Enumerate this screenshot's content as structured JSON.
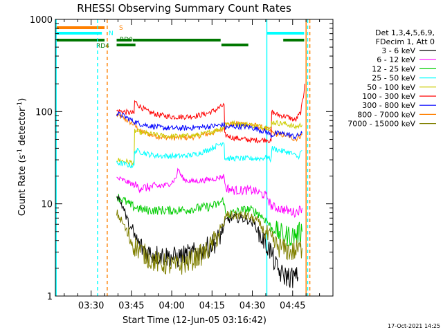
{
  "chart_data": {
    "type": "line",
    "title": "RHESSI Observing Summary Count Rates",
    "xlabel": "Start Time (12-Jun-05 03:16:42)",
    "ylabel_prefix": "Count Rate (s",
    "ylabel_sup": "-1",
    "ylabel_suffix": " detector",
    "ylabel_end": ")",
    "yscale": "log",
    "xlim_minutes": [
      196.7,
      300.0
    ],
    "ylim": [
      1,
      1000
    ],
    "x_ticks": [
      {
        "m": 210,
        "label": "03:30"
      },
      {
        "m": 225,
        "label": "03:45"
      },
      {
        "m": 240,
        "label": "04:00"
      },
      {
        "m": 255,
        "label": "04:15"
      },
      {
        "m": 270,
        "label": "04:30"
      },
      {
        "m": 285,
        "label": "04:45"
      }
    ],
    "y_ticks": [
      {
        "v": 1,
        "label": "1"
      },
      {
        "v": 10,
        "label": "10"
      },
      {
        "v": 100,
        "label": "100"
      },
      {
        "v": 1000,
        "label": "1000"
      }
    ],
    "legend_header": [
      "Det 1,3,4,5,6,9,",
      "FDecim 1, Att 0"
    ],
    "legend_position": "right",
    "timestamp": "17-Oct-2021 14:25",
    "series": [
      {
        "name": "3 - 6 keV",
        "color": "#000000",
        "points": [
          [
            219.5,
            13
          ],
          [
            222,
            9
          ],
          [
            224,
            6
          ],
          [
            226,
            4.5
          ],
          [
            228,
            3.5
          ],
          [
            231,
            3
          ],
          [
            234,
            2.8
          ],
          [
            238,
            2.7
          ],
          [
            242,
            2.6
          ],
          [
            246,
            2.8
          ],
          [
            250,
            3
          ],
          [
            253,
            3.3
          ],
          [
            257,
            4
          ],
          [
            259.5,
            5.5
          ],
          [
            260,
            6.5
          ],
          [
            262,
            7
          ],
          [
            265,
            7
          ],
          [
            268,
            6.8
          ],
          [
            271,
            6
          ],
          [
            273,
            4.5
          ],
          [
            275.5,
            3.5
          ],
          [
            277,
            3
          ],
          [
            279,
            2
          ],
          [
            281,
            1.7
          ],
          [
            284,
            1.6
          ],
          [
            287,
            1.6
          ]
        ]
      },
      {
        "name": "6 - 12 keV",
        "color": "#ff00ff",
        "points": [
          [
            219.5,
            19
          ],
          [
            222,
            18
          ],
          [
            225,
            16.5
          ],
          [
            228,
            15
          ],
          [
            231,
            15
          ],
          [
            235,
            15.5
          ],
          [
            238,
            16
          ],
          [
            240,
            17
          ],
          [
            241.5,
            19
          ],
          [
            242.5,
            24
          ],
          [
            243.5,
            20
          ],
          [
            245,
            18
          ],
          [
            248,
            17.5
          ],
          [
            252,
            18
          ],
          [
            255,
            18.5
          ],
          [
            257,
            19
          ],
          [
            259.5,
            20
          ],
          [
            260,
            15
          ],
          [
            263,
            14
          ],
          [
            267,
            14
          ],
          [
            270,
            14
          ],
          [
            273,
            13
          ],
          [
            275.5,
            12
          ],
          [
            277,
            9.5
          ],
          [
            279,
            9
          ],
          [
            283,
            8.5
          ],
          [
            286,
            8
          ],
          [
            288.5,
            9
          ]
        ]
      },
      {
        "name": "12 - 25 keV",
        "color": "#00cc00",
        "points": [
          [
            219.5,
            12
          ],
          [
            222,
            11
          ],
          [
            225,
            9.5
          ],
          [
            228,
            8.8
          ],
          [
            231,
            8.5
          ],
          [
            235,
            8.5
          ],
          [
            240,
            8.5
          ],
          [
            245,
            8.6
          ],
          [
            250,
            9
          ],
          [
            254,
            9.3
          ],
          [
            257,
            9.8
          ],
          [
            259.5,
            11
          ],
          [
            260,
            7.5
          ],
          [
            263,
            8
          ],
          [
            266,
            8.5
          ],
          [
            269,
            8.7
          ],
          [
            272,
            8
          ],
          [
            275.5,
            6.5
          ],
          [
            277,
            5.5
          ],
          [
            279,
            5
          ],
          [
            282,
            4.5
          ],
          [
            285,
            4.5
          ],
          [
            288.5,
            5
          ]
        ]
      },
      {
        "name": "25 - 50 keV",
        "color": "#00ffff",
        "points": [
          [
            219.5,
            28
          ],
          [
            222,
            27
          ],
          [
            225,
            26
          ],
          [
            226,
            26
          ],
          [
            226.2,
            38
          ],
          [
            228,
            37
          ],
          [
            232,
            34
          ],
          [
            236,
            33
          ],
          [
            240,
            33
          ],
          [
            244,
            33
          ],
          [
            248,
            34
          ],
          [
            251,
            36
          ],
          [
            254,
            39
          ],
          [
            257,
            43
          ],
          [
            259.5,
            47
          ],
          [
            259.7,
            31
          ],
          [
            263,
            31
          ],
          [
            266,
            31
          ],
          [
            270,
            31
          ],
          [
            273,
            31
          ],
          [
            275.5,
            32
          ],
          [
            277,
            30
          ],
          [
            277.2,
            40
          ],
          [
            280,
            38
          ],
          [
            284,
            36
          ],
          [
            287,
            32
          ],
          [
            288.5,
            38
          ]
        ]
      },
      {
        "name": "50 - 100 keV",
        "color": "#cccc00",
        "points": [
          [
            219.5,
            30
          ],
          [
            222,
            29
          ],
          [
            226,
            28
          ],
          [
            226.2,
            62
          ],
          [
            228,
            60
          ],
          [
            232,
            57
          ],
          [
            236,
            55
          ],
          [
            240,
            54
          ],
          [
            244,
            54
          ],
          [
            248,
            55
          ],
          [
            252,
            57
          ],
          [
            256,
            62
          ],
          [
            259.5,
            68
          ],
          [
            260,
            75
          ],
          [
            263,
            74
          ],
          [
            267,
            73
          ],
          [
            270,
            71
          ],
          [
            273,
            69
          ],
          [
            275.5,
            68
          ],
          [
            277,
            65
          ],
          [
            277.2,
            77
          ],
          [
            280,
            75
          ],
          [
            283,
            73
          ],
          [
            286,
            68
          ],
          [
            288.5,
            72
          ]
        ]
      },
      {
        "name": "100 - 300 keV",
        "color": "#ff0000",
        "points": [
          [
            219.5,
            102
          ],
          [
            222,
            100
          ],
          [
            226,
            95
          ],
          [
            226.2,
            130
          ],
          [
            228,
            115
          ],
          [
            231,
            100
          ],
          [
            235,
            92
          ],
          [
            240,
            88
          ],
          [
            245,
            88
          ],
          [
            249,
            90
          ],
          [
            253,
            95
          ],
          [
            256,
            103
          ],
          [
            259.5,
            118
          ],
          [
            259.7,
            56
          ],
          [
            263,
            52
          ],
          [
            267,
            50
          ],
          [
            270,
            49
          ],
          [
            273,
            49
          ],
          [
            275.5,
            50
          ],
          [
            277,
            47
          ],
          [
            277.2,
            100
          ],
          [
            279,
            93
          ],
          [
            283,
            88
          ],
          [
            286,
            80
          ],
          [
            288,
            98
          ],
          [
            289,
            145
          ],
          [
            289.5,
            200
          ]
        ]
      },
      {
        "name": "300 - 800 keV",
        "color": "#0000ff",
        "points": [
          [
            219.5,
            95
          ],
          [
            222,
            90
          ],
          [
            226,
            78
          ],
          [
            228,
            74
          ],
          [
            232,
            70
          ],
          [
            236,
            67
          ],
          [
            240,
            66
          ],
          [
            244,
            66
          ],
          [
            248,
            67
          ],
          [
            252,
            68
          ],
          [
            256,
            70
          ],
          [
            259.5,
            72
          ],
          [
            260,
            67
          ],
          [
            263,
            69
          ],
          [
            267,
            69
          ],
          [
            270,
            67
          ],
          [
            273,
            63
          ],
          [
            275.5,
            60
          ],
          [
            277,
            55
          ],
          [
            279,
            58
          ],
          [
            283,
            57
          ],
          [
            286,
            53
          ],
          [
            288.5,
            58
          ]
        ]
      },
      {
        "name": "800 - 7000 keV",
        "color": "#ff8000",
        "points": [
          [
            219.5,
            92
          ],
          [
            222,
            85
          ],
          [
            226,
            72
          ],
          [
            228,
            62
          ],
          [
            232,
            56
          ],
          [
            236,
            53
          ],
          [
            240,
            52
          ],
          [
            244,
            52
          ],
          [
            248,
            53
          ],
          [
            252,
            56
          ],
          [
            256,
            60
          ],
          [
            259.5,
            67
          ],
          [
            260,
            72
          ],
          [
            263,
            74
          ],
          [
            267,
            74
          ],
          [
            270,
            72
          ],
          [
            273,
            68
          ],
          [
            275.5,
            64
          ],
          [
            277,
            60
          ],
          [
            279,
            57
          ],
          [
            283,
            55
          ],
          [
            286,
            50
          ],
          [
            288.5,
            56
          ]
        ]
      },
      {
        "name": "7000 - 15000 keV",
        "color": "#808000",
        "points": [
          [
            219.5,
            8
          ],
          [
            222,
            6
          ],
          [
            224,
            4.5
          ],
          [
            226,
            3.5
          ],
          [
            229,
            3
          ],
          [
            232,
            2.5
          ],
          [
            235,
            2.3
          ],
          [
            238,
            2.2
          ],
          [
            241,
            2.1
          ],
          [
            244,
            2.2
          ],
          [
            247,
            2.4
          ],
          [
            250,
            2.7
          ],
          [
            253,
            3
          ],
          [
            256,
            4
          ],
          [
            258,
            5
          ],
          [
            259.5,
            6
          ],
          [
            260,
            7.5
          ],
          [
            263,
            7.5
          ],
          [
            266,
            7.5
          ],
          [
            269,
            7.2
          ],
          [
            272,
            6.5
          ],
          [
            275.5,
            4.5
          ],
          [
            277,
            4
          ],
          [
            279,
            3.5
          ],
          [
            282,
            3.2
          ],
          [
            285,
            3
          ],
          [
            288.5,
            3.3
          ]
        ]
      }
    ],
    "flag_labels": [
      {
        "text": "S",
        "color": "#ff8000"
      },
      {
        "text": "N",
        "color": "#00ffff"
      },
      {
        "text": "RD0",
        "color": "#007700"
      },
      {
        "text": "RD4",
        "color": "#007700"
      }
    ],
    "flags": {
      "S": {
        "color": "#ff8000",
        "segments": [
          [
            196.7,
            215
          ]
        ]
      },
      "N": {
        "color": "#00ffff",
        "segments": [
          [
            196.7,
            214
          ],
          [
            275.5,
            289.3
          ]
        ]
      },
      "RD0": {
        "color": "#007700",
        "segments": [
          [
            196.7,
            215
          ],
          [
            219.5,
            225
          ],
          [
            225.5,
            258.2
          ],
          [
            281.5,
            289.3
          ]
        ]
      },
      "RD4": {
        "color": "#007700",
        "segments": [
          [
            219.5,
            226.5
          ],
          [
            258.5,
            268.5
          ]
        ]
      }
    },
    "vlines": [
      {
        "m": 197.0,
        "color": "#00ffff",
        "style": "solid"
      },
      {
        "m": 212.4,
        "color": "#00ffff",
        "style": "dash"
      },
      {
        "m": 216.0,
        "color": "#ff8000",
        "style": "dash"
      },
      {
        "m": 275.4,
        "color": "#00ffff",
        "style": "solid"
      },
      {
        "m": 290.0,
        "color": "#ff8000",
        "style": "solid"
      },
      {
        "m": 290.6,
        "color": "#00ffff",
        "style": "dash"
      },
      {
        "m": 291.4,
        "color": "#ff8000",
        "style": "dash"
      }
    ]
  }
}
